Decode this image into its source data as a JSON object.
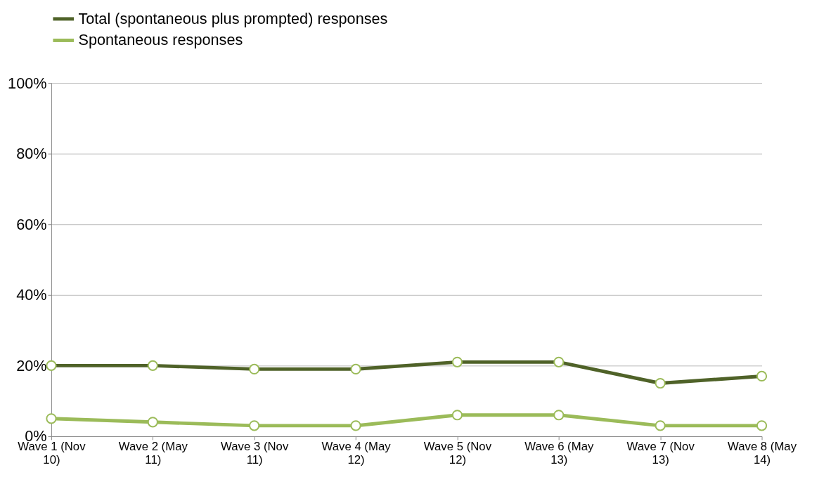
{
  "chart_data": {
    "type": "line",
    "categories": [
      "Wave 1 (Nov 10)",
      "Wave 2 (May 11)",
      "Wave 3 (Nov 11)",
      "Wave 4 (May 12)",
      "Wave 5 (Nov 12)",
      "Wave 6 (May 13)",
      "Wave 7 (Nov 13)",
      "Wave 8 (May 14)"
    ],
    "series": [
      {
        "name": "Total (spontaneous plus prompted) responses",
        "color": "#4f6228",
        "values": [
          0.2,
          0.2,
          0.19,
          0.19,
          0.21,
          0.21,
          0.15,
          0.17
        ]
      },
      {
        "name": "Spontaneous responses",
        "color": "#9bbb59",
        "values": [
          0.05,
          0.04,
          0.03,
          0.03,
          0.06,
          0.06,
          0.03,
          0.03
        ]
      }
    ],
    "ylim": [
      0,
      1
    ],
    "yticks": [
      {
        "value": 0,
        "label": "0%"
      },
      {
        "value": 0.2,
        "label": "20%"
      },
      {
        "value": 0.4,
        "label": "40%"
      },
      {
        "value": 0.6,
        "label": "60%"
      },
      {
        "value": 0.8,
        "label": "80%"
      },
      {
        "value": 1,
        "label": "100%"
      }
    ],
    "grid": "y",
    "legend": "top left",
    "marker": "circle",
    "line_style": "solid"
  }
}
